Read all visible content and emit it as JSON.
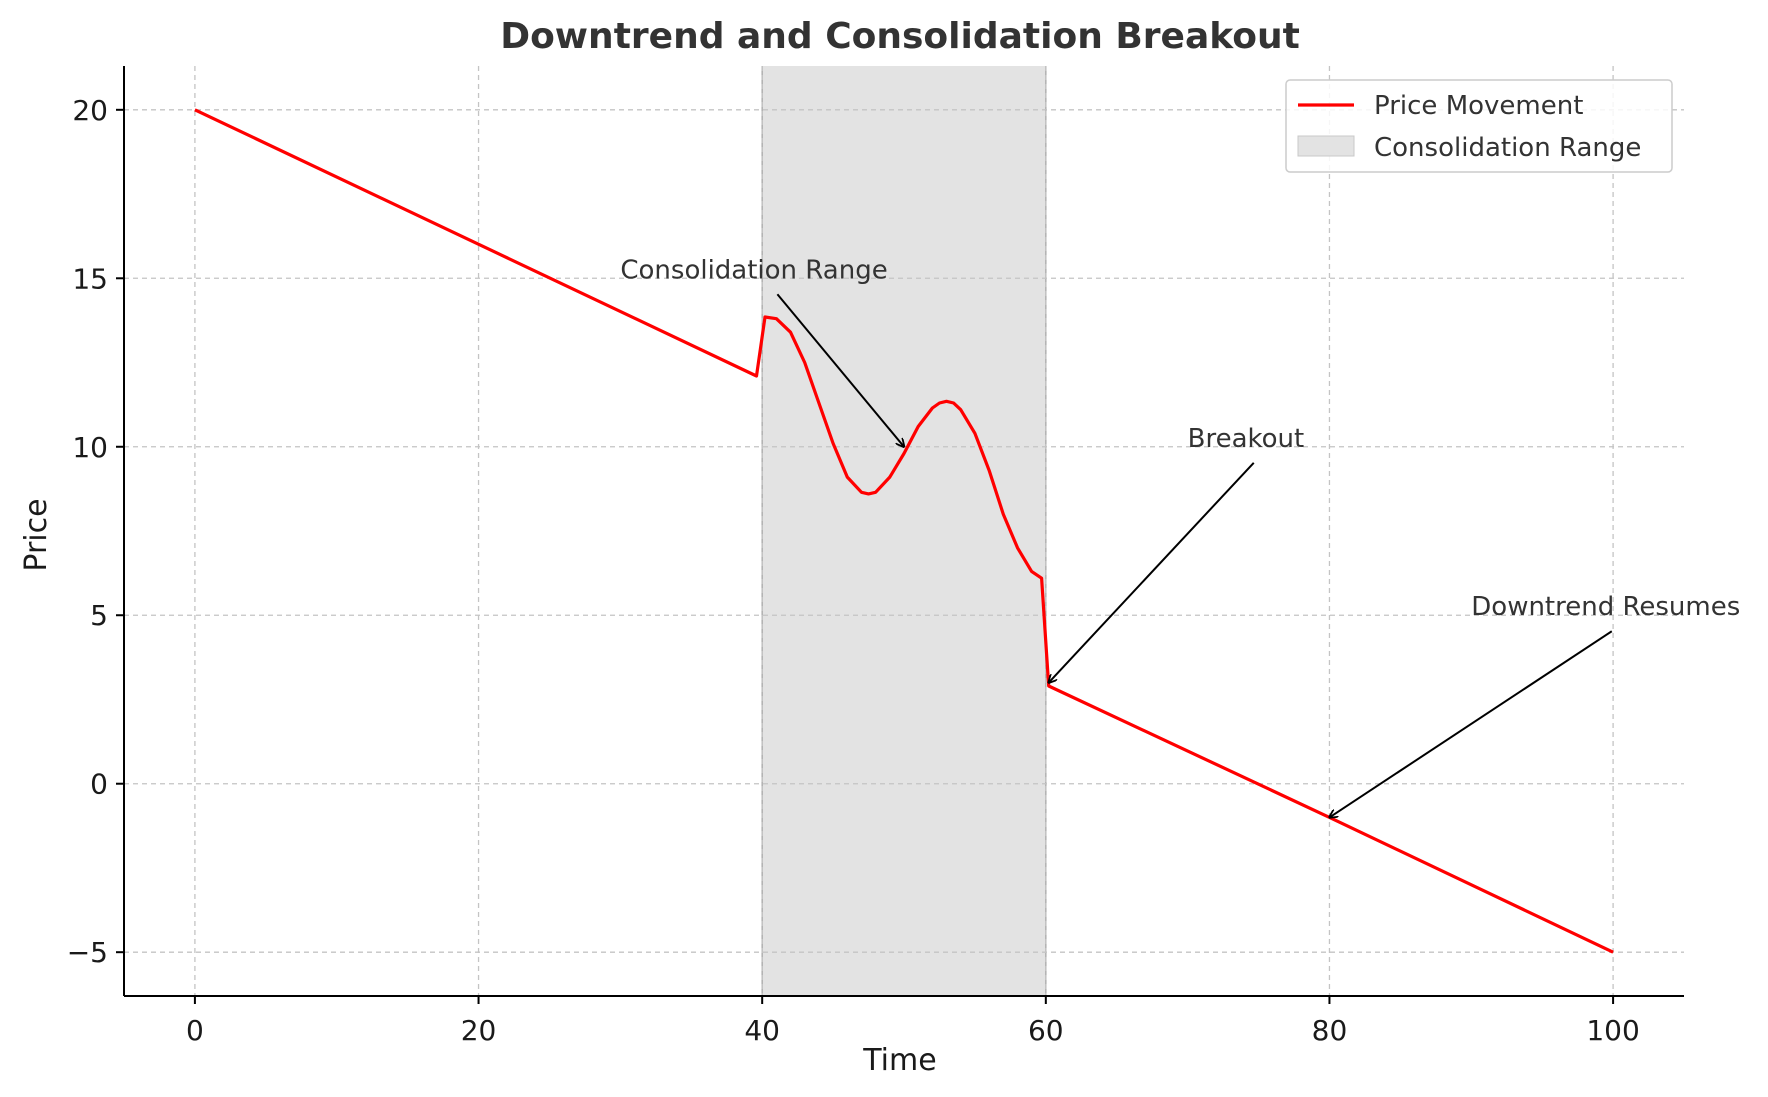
{
  "chart_data": {
    "type": "line",
    "title": "Downtrend and Consolidation Breakout",
    "xlabel": "Time",
    "ylabel": "Price",
    "xlim": [
      -5,
      105
    ],
    "ylim": [
      -6.3,
      21.3
    ],
    "xticks": [
      0,
      20,
      40,
      60,
      80,
      100
    ],
    "yticks": [
      20,
      15,
      10,
      5,
      0,
      -5
    ],
    "ytick_labels": [
      "20",
      "15",
      "10",
      "5",
      "0",
      "−5"
    ],
    "grid": true,
    "legend_position": "top-right",
    "colors": {
      "line": "#ff0000",
      "band": "#e3e3e3",
      "band_edge": "#b0b0b0",
      "grid": "#c4c4c4",
      "text": "#333333"
    },
    "series": [
      {
        "name": "Price Movement",
        "x": [
          0,
          39.6,
          40.2,
          41.0,
          42.0,
          43.0,
          44.0,
          45.0,
          46.0,
          47.0,
          47.5,
          48.0,
          49.0,
          50.0,
          51.0,
          52.0,
          52.5,
          53.0,
          53.5,
          54.0,
          55.0,
          56.0,
          57.0,
          58.0,
          59.0,
          59.7,
          60.2,
          80,
          100
        ],
        "y": [
          20,
          12.1,
          13.85,
          13.8,
          13.4,
          12.5,
          11.3,
          10.1,
          9.1,
          8.65,
          8.6,
          8.65,
          9.1,
          9.8,
          10.6,
          11.15,
          11.3,
          11.35,
          11.3,
          11.1,
          10.4,
          9.3,
          8.0,
          7.0,
          6.3,
          6.1,
          2.9,
          -1,
          -5
        ]
      }
    ],
    "band": {
      "name": "Consolidation Range",
      "x_start": 40,
      "x_end": 60
    },
    "annotations": [
      {
        "text": "Consolidation Range",
        "text_xy": [
          30,
          15
        ],
        "arrow_xy": [
          50,
          10
        ]
      },
      {
        "text": "Breakout",
        "text_xy": [
          70,
          10
        ],
        "arrow_xy": [
          60.2,
          3
        ]
      },
      {
        "text": "Downtrend Resumes",
        "text_xy": [
          90,
          5
        ],
        "arrow_xy": [
          80,
          -1
        ]
      }
    ]
  }
}
